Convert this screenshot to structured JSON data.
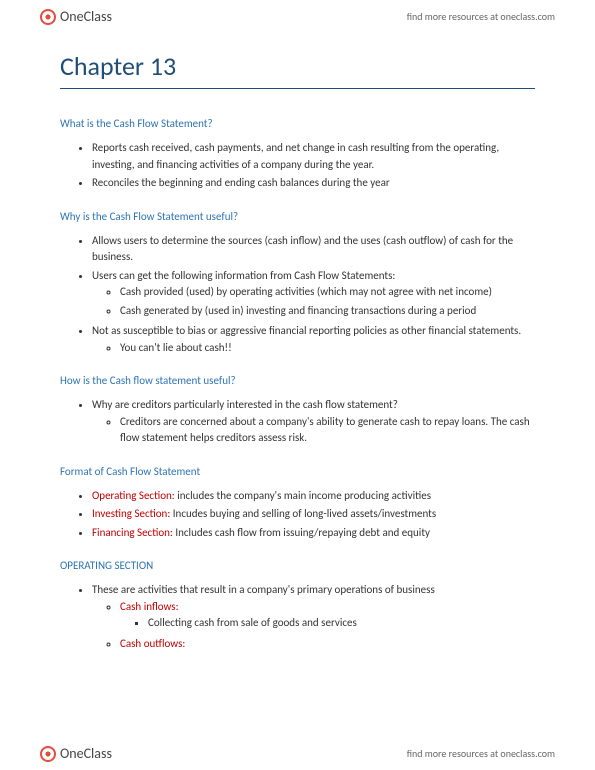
{
  "header": {
    "logo_text": "OneClass",
    "tagline": "find more resources at oneclass.com"
  },
  "footer": {
    "logo_text": "OneClass",
    "tagline": "find more resources at oneclass.com"
  },
  "title": "Chapter 13",
  "sections": [
    {
      "heading": "What is the Cash Flow Statement?",
      "bullets": [
        {
          "text": "Reports cash received, cash payments, and net change in cash resulting from the operating, investing, and financing activities of a company during the year."
        },
        {
          "text": "Reconciles the beginning and ending cash balances during the year"
        }
      ]
    },
    {
      "heading": "Why is the Cash Flow Statement useful?",
      "bullets": [
        {
          "text": "Allows users to determine the sources (cash inflow) and the uses (cash outflow) of cash for the business."
        },
        {
          "text": "Users can get the following information from Cash Flow Statements:",
          "children": [
            {
              "text": "Cash provided (used) by operating activities (which may not agree with net income)"
            },
            {
              "text": "Cash generated by (used in) investing and financing transactions during a period"
            }
          ]
        },
        {
          "text": "Not as susceptible to bias or aggressive financial reporting policies as other financial statements.",
          "children": [
            {
              "text": "You can't lie about cash!!"
            }
          ]
        }
      ]
    },
    {
      "heading": "How is the Cash flow statement useful?",
      "bullets": [
        {
          "text": "Why are creditors particularly interested in the cash flow statement?",
          "children": [
            {
              "text": "Creditors are concerned about a company's ability to generate cash to repay loans. The cash flow statement helps creditors assess risk."
            }
          ]
        }
      ]
    },
    {
      "heading": "Format of Cash Flow Statement",
      "bullets": [
        {
          "label": "Operating Section:",
          "label_red": true,
          "text": " includes the company's main income producing activities"
        },
        {
          "label": "Investing Section:",
          "label_red": true,
          "text": " Incudes buying and selling of long-lived assets/investments"
        },
        {
          "label": "Financing Section:",
          "label_red": true,
          "text": " Includes cash flow from issuing/repaying debt and equity"
        }
      ]
    }
  ],
  "operating_heading": "OPERATING SECTION",
  "operating": {
    "bullets": [
      {
        "text": "These are activities that result in a company's primary operations of business",
        "children": [
          {
            "text": "Cash inflows:",
            "red": true,
            "children": [
              {
                "text": "Collecting cash from sale of goods and services"
              }
            ]
          },
          {
            "text": "Cash outflows:",
            "red": true
          }
        ]
      }
    ]
  }
}
